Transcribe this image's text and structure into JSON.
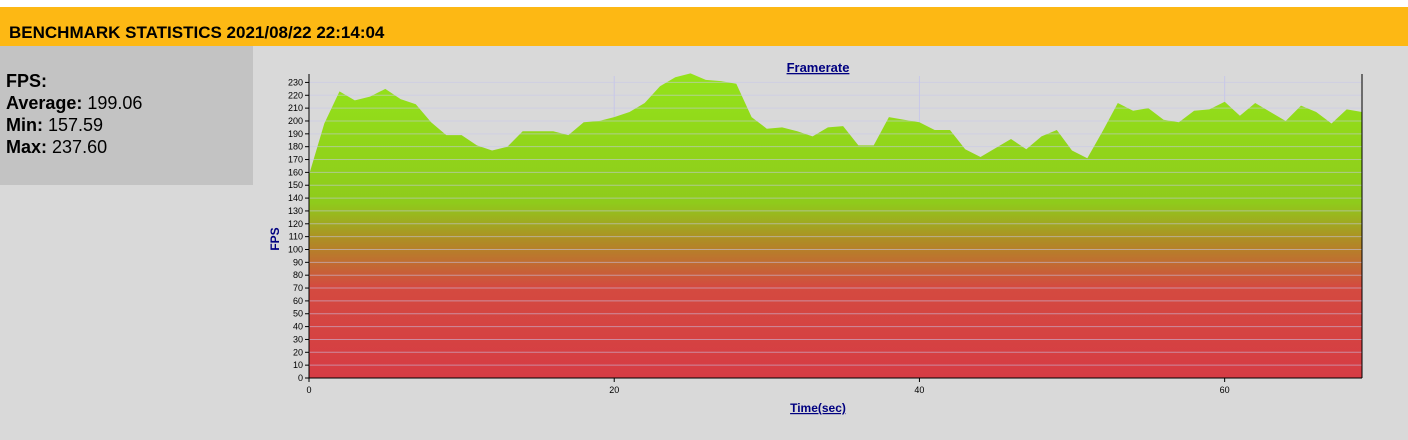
{
  "header": {
    "title": "BENCHMARK STATISTICS 2021/08/22 22:14:04"
  },
  "stats": {
    "heading": "FPS:",
    "average_label": "Average:",
    "average_value": "199.06",
    "min_label": "Min:",
    "min_value": "157.59",
    "max_label": "Max:",
    "max_value": "237.60"
  },
  "colors": {
    "header_bg": "#fdb814",
    "panel_bg": "#c3c3c3",
    "page_bg": "#d9d9d9",
    "fill_high": "#94e21a",
    "fill_low": "#d63c44",
    "title_color": "#000080"
  },
  "chart_data": {
    "type": "area",
    "title": "Framerate",
    "xlabel": "Time(sec)",
    "ylabel": "FPS",
    "xlim": [
      0,
      69
    ],
    "ylim": [
      0,
      235
    ],
    "xticks": [
      0,
      20,
      40,
      60
    ],
    "yticks": [
      0,
      10,
      20,
      30,
      40,
      50,
      60,
      70,
      80,
      90,
      100,
      110,
      120,
      130,
      140,
      150,
      160,
      170,
      180,
      190,
      200,
      210,
      220,
      230
    ],
    "grid": true,
    "legend": "none",
    "series": [
      {
        "x": [
          0,
          1,
          2,
          3,
          4,
          5,
          6,
          7,
          8,
          9,
          10,
          11,
          12,
          13,
          14,
          15,
          16,
          17,
          18,
          19,
          20,
          21,
          22,
          23,
          24,
          25,
          26,
          27,
          28,
          29,
          30,
          31,
          32,
          33,
          34,
          35,
          36,
          37,
          38,
          39,
          40,
          41,
          42,
          43,
          44,
          45,
          46,
          47,
          48,
          49,
          50,
          51,
          52,
          53,
          54,
          55,
          56,
          57,
          58,
          59,
          60,
          61,
          62,
          63,
          64,
          65,
          66,
          67,
          68,
          69
        ],
        "values": [
          158,
          198,
          223,
          216,
          219,
          225,
          217,
          213,
          199,
          189,
          189,
          181,
          177,
          180,
          192,
          192,
          192,
          189,
          199,
          200,
          203,
          207,
          214,
          227,
          234,
          237,
          232,
          231,
          229,
          203,
          194,
          195,
          192,
          188,
          195,
          196,
          181,
          181,
          203,
          201,
          199,
          193,
          193,
          178,
          172,
          179,
          186,
          178,
          188,
          193,
          177,
          171,
          192,
          214,
          208,
          210,
          201,
          199,
          208,
          209,
          215,
          204,
          214,
          207,
          200,
          212,
          207,
          198,
          209,
          207
        ]
      }
    ]
  }
}
